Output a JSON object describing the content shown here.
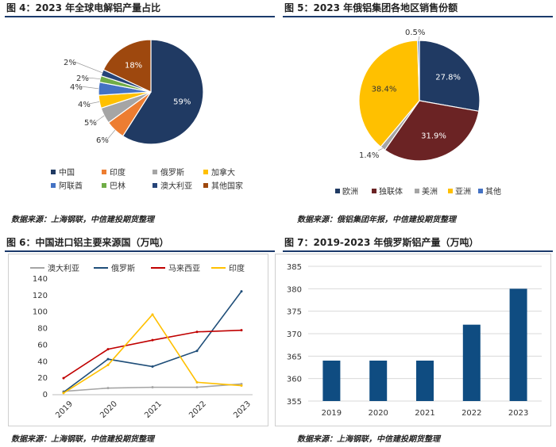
{
  "fig4": {
    "title": "图 4：2023 年全球电解铝产量占比",
    "source": "数据来源：上海钢联，中信建投期货整理",
    "chart_data": {
      "type": "pie",
      "slices": [
        {
          "name": "中国",
          "value": 59,
          "label": "59%",
          "color": "#203a63"
        },
        {
          "name": "印度",
          "value": 6,
          "label": "6%",
          "color": "#ed7d31"
        },
        {
          "name": "俄罗斯",
          "value": 5,
          "label": "5%",
          "color": "#a5a5a5"
        },
        {
          "name": "加拿大",
          "value": 4,
          "label": "4%",
          "color": "#ffc000"
        },
        {
          "name": "阿联酋",
          "value": 4,
          "label": "4%",
          "color": "#4472c4"
        },
        {
          "name": "巴林",
          "value": 2,
          "label": "2%",
          "color": "#70ad47"
        },
        {
          "name": "澳大利亚",
          "value": 2,
          "label": "2%",
          "color": "#264478"
        },
        {
          "name": "其他国家",
          "value": 18,
          "label": "18%",
          "color": "#9e480e"
        }
      ]
    }
  },
  "fig5": {
    "title": "图 5：2023 年俄铝集团各地区销售份额",
    "source": "数据来源：俄铝集团年报，中信建投期货整理",
    "chart_data": {
      "type": "pie",
      "slices": [
        {
          "name": "欧洲",
          "value": 27.8,
          "label": "27.8%",
          "color": "#203a63"
        },
        {
          "name": "独联体",
          "value": 31.9,
          "label": "31.9%",
          "color": "#6b2324"
        },
        {
          "name": "美洲",
          "value": 1.4,
          "label": "1.4%",
          "color": "#a5a5a5"
        },
        {
          "name": "亚洲",
          "value": 38.4,
          "label": "38.4%",
          "color": "#ffc000"
        },
        {
          "name": "其他",
          "value": 0.5,
          "label": "0.5%",
          "color": "#4472c4"
        }
      ]
    }
  },
  "fig6": {
    "title": "图 6：中国进口铝主要来源国（万吨）",
    "source": "数据来源：上海钢联，中信建投期货整理",
    "chart_data": {
      "type": "line",
      "x": [
        "2019",
        "2020",
        "2021",
        "2022",
        "2023"
      ],
      "ylim": [
        0,
        140
      ],
      "yticks": [
        "0",
        "20",
        "40",
        "60",
        "80",
        "100",
        "120",
        "140"
      ],
      "series": [
        {
          "name": "澳大利亚",
          "color": "#a5a5a5",
          "values": [
            4,
            8,
            9,
            9,
            13
          ]
        },
        {
          "name": "俄罗斯",
          "color": "#1f4e79",
          "values": [
            3,
            43,
            34,
            53,
            125
          ]
        },
        {
          "name": "马来西亚",
          "color": "#c00000",
          "values": [
            20,
            55,
            66,
            76,
            78
          ]
        },
        {
          "name": "印度",
          "color": "#ffc000",
          "values": [
            2,
            36,
            97,
            15,
            11
          ]
        }
      ]
    }
  },
  "fig7": {
    "title": "图 7：2019-2023 年俄罗斯铝产量（万吨）",
    "source": "数据来源：上海钢联，中信建投期货整理",
    "chart_data": {
      "type": "bar",
      "categories": [
        "2019",
        "2020",
        "2021",
        "2022",
        "2023"
      ],
      "values": [
        364,
        364,
        364,
        372,
        380
      ],
      "ylim": [
        355,
        385
      ],
      "yticks": [
        "355",
        "360",
        "365",
        "370",
        "375",
        "380",
        "385"
      ],
      "color": "#0f4c81",
      "grid": true
    }
  }
}
